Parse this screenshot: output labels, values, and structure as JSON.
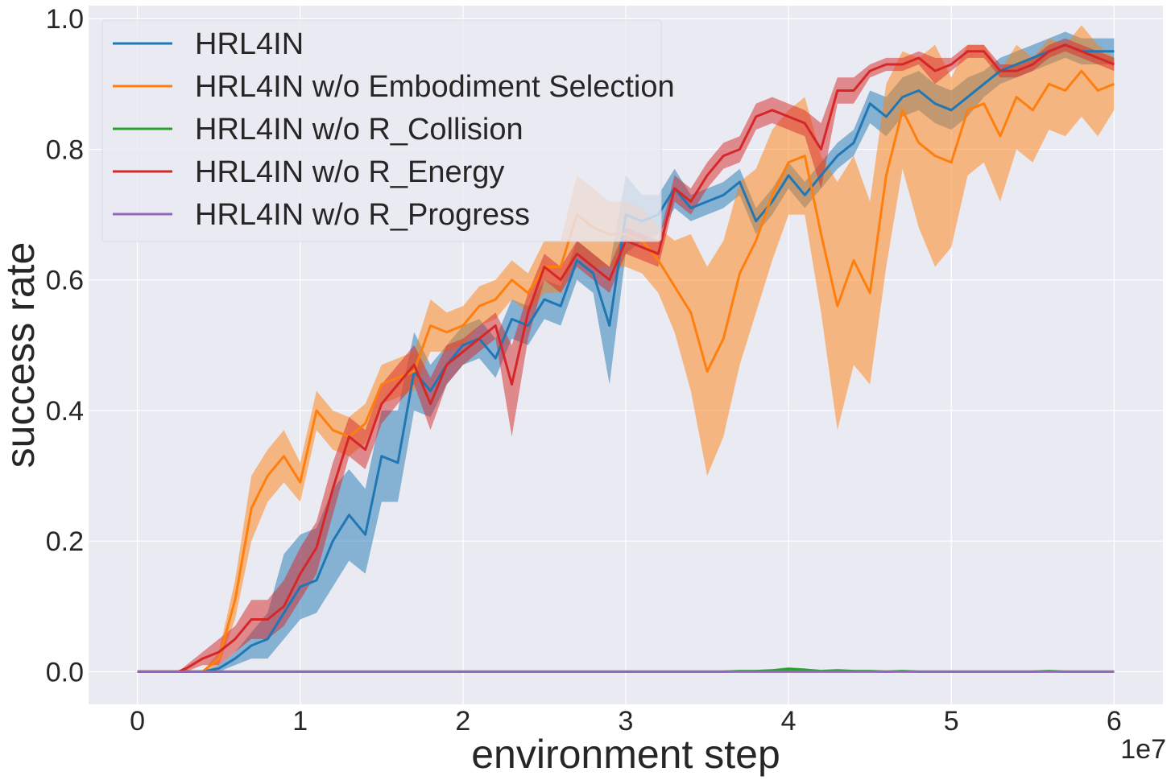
{
  "chart_data": {
    "type": "line",
    "title": "",
    "xlabel": "environment step",
    "ylabel": "success rate",
    "x_offset_label": "1e7",
    "xlim": [
      -0.3,
      6.3
    ],
    "ylim": [
      -0.05,
      1.02
    ],
    "xticks": [
      0,
      1,
      2,
      3,
      4,
      5,
      6
    ],
    "xtick_labels": [
      "0",
      "1",
      "2",
      "3",
      "4",
      "5",
      "6"
    ],
    "yticks": [
      0.0,
      0.2,
      0.4,
      0.6,
      0.8,
      1.0
    ],
    "ytick_labels": [
      "0.0",
      "0.2",
      "0.4",
      "0.6",
      "0.8",
      "1.0"
    ],
    "grid": true,
    "legend_position": "top-left",
    "x": [
      0,
      0.25,
      0.3,
      0.4,
      0.5,
      0.6,
      0.7,
      0.8,
      0.9,
      1.0,
      1.1,
      1.2,
      1.3,
      1.4,
      1.5,
      1.6,
      1.7,
      1.8,
      1.9,
      2.0,
      2.1,
      2.2,
      2.3,
      2.4,
      2.5,
      2.6,
      2.7,
      2.8,
      2.9,
      3.0,
      3.1,
      3.2,
      3.3,
      3.4,
      3.5,
      3.6,
      3.7,
      3.8,
      3.9,
      4.0,
      4.1,
      4.2,
      4.3,
      4.4,
      4.5,
      4.6,
      4.7,
      4.8,
      4.9,
      5.0,
      5.1,
      5.2,
      5.3,
      5.4,
      5.5,
      5.6,
      5.7,
      5.8,
      5.9,
      6.0
    ],
    "series": [
      {
        "name": "HRL4IN",
        "color": "#1f77b4",
        "values": [
          0,
          0,
          0,
          0,
          0.005,
          0.02,
          0.04,
          0.05,
          0.09,
          0.13,
          0.14,
          0.2,
          0.24,
          0.21,
          0.33,
          0.32,
          0.46,
          0.43,
          0.47,
          0.5,
          0.51,
          0.48,
          0.54,
          0.53,
          0.57,
          0.56,
          0.63,
          0.61,
          0.53,
          0.7,
          0.69,
          0.7,
          0.74,
          0.71,
          0.72,
          0.73,
          0.75,
          0.69,
          0.72,
          0.76,
          0.73,
          0.76,
          0.79,
          0.81,
          0.87,
          0.85,
          0.88,
          0.89,
          0.87,
          0.86,
          0.88,
          0.9,
          0.92,
          0.93,
          0.94,
          0.95,
          0.96,
          0.95,
          0.95,
          0.95
        ],
        "lower": [
          0,
          0,
          0,
          0,
          0,
          0.01,
          0.02,
          0.02,
          0.05,
          0.08,
          0.09,
          0.13,
          0.17,
          0.15,
          0.26,
          0.26,
          0.4,
          0.39,
          0.44,
          0.47,
          0.48,
          0.45,
          0.51,
          0.5,
          0.54,
          0.53,
          0.6,
          0.58,
          0.44,
          0.64,
          0.66,
          0.67,
          0.71,
          0.69,
          0.7,
          0.71,
          0.73,
          0.67,
          0.7,
          0.74,
          0.71,
          0.74,
          0.77,
          0.79,
          0.84,
          0.82,
          0.85,
          0.86,
          0.84,
          0.83,
          0.85,
          0.88,
          0.9,
          0.91,
          0.92,
          0.93,
          0.94,
          0.93,
          0.93,
          0.93
        ],
        "upper": [
          0,
          0,
          0,
          0,
          0.01,
          0.03,
          0.06,
          0.09,
          0.18,
          0.21,
          0.22,
          0.28,
          0.31,
          0.28,
          0.4,
          0.4,
          0.52,
          0.47,
          0.5,
          0.53,
          0.54,
          0.51,
          0.57,
          0.56,
          0.6,
          0.59,
          0.66,
          0.64,
          0.62,
          0.76,
          0.73,
          0.73,
          0.77,
          0.73,
          0.74,
          0.75,
          0.77,
          0.71,
          0.74,
          0.78,
          0.75,
          0.78,
          0.81,
          0.83,
          0.89,
          0.88,
          0.91,
          0.92,
          0.9,
          0.89,
          0.91,
          0.92,
          0.94,
          0.95,
          0.96,
          0.97,
          0.98,
          0.97,
          0.97,
          0.97
        ]
      },
      {
        "name": "HRL4IN w/o Embodiment Selection",
        "color": "#ff7f0e",
        "values": [
          0,
          0,
          0,
          0,
          0.02,
          0.11,
          0.25,
          0.3,
          0.33,
          0.29,
          0.4,
          0.37,
          0.36,
          0.38,
          0.44,
          0.45,
          0.46,
          0.53,
          0.52,
          0.53,
          0.56,
          0.57,
          0.6,
          0.58,
          0.62,
          0.62,
          0.7,
          0.68,
          0.67,
          0.67,
          0.66,
          0.63,
          0.59,
          0.55,
          0.46,
          0.51,
          0.61,
          0.66,
          0.73,
          0.78,
          0.79,
          0.67,
          0.56,
          0.63,
          0.58,
          0.76,
          0.86,
          0.81,
          0.79,
          0.78,
          0.86,
          0.87,
          0.82,
          0.88,
          0.86,
          0.9,
          0.89,
          0.92,
          0.89,
          0.9
        ],
        "lower": [
          0,
          0,
          0,
          0,
          0.01,
          0.08,
          0.2,
          0.26,
          0.29,
          0.26,
          0.37,
          0.34,
          0.33,
          0.35,
          0.41,
          0.42,
          0.43,
          0.49,
          0.49,
          0.5,
          0.53,
          0.54,
          0.57,
          0.55,
          0.58,
          0.58,
          0.64,
          0.62,
          0.62,
          0.62,
          0.61,
          0.58,
          0.52,
          0.43,
          0.3,
          0.36,
          0.47,
          0.55,
          0.63,
          0.7,
          0.7,
          0.55,
          0.37,
          0.47,
          0.44,
          0.62,
          0.77,
          0.68,
          0.62,
          0.65,
          0.76,
          0.78,
          0.72,
          0.8,
          0.78,
          0.83,
          0.82,
          0.85,
          0.82,
          0.86
        ],
        "upper": [
          0,
          0,
          0,
          0,
          0.03,
          0.14,
          0.3,
          0.34,
          0.37,
          0.32,
          0.43,
          0.4,
          0.39,
          0.41,
          0.47,
          0.48,
          0.49,
          0.57,
          0.55,
          0.56,
          0.59,
          0.6,
          0.63,
          0.61,
          0.66,
          0.66,
          0.76,
          0.74,
          0.72,
          0.72,
          0.71,
          0.68,
          0.66,
          0.67,
          0.62,
          0.66,
          0.75,
          0.77,
          0.83,
          0.86,
          0.88,
          0.79,
          0.75,
          0.79,
          0.72,
          0.9,
          0.95,
          0.94,
          0.96,
          0.91,
          0.96,
          0.96,
          0.92,
          0.96,
          0.94,
          0.97,
          0.96,
          0.99,
          0.96,
          0.94
        ]
      },
      {
        "name": "HRL4IN w/o R_Collision",
        "color": "#2ca02c",
        "values": [
          0,
          0,
          0,
          0,
          0,
          0,
          0,
          0,
          0,
          0,
          0,
          0,
          0,
          0,
          0,
          0,
          0,
          0,
          0,
          0,
          0,
          0,
          0,
          0,
          0,
          0,
          0,
          0,
          0,
          0,
          0,
          0,
          0,
          0,
          0,
          0,
          0.001,
          0.001,
          0.002,
          0.004,
          0.003,
          0.001,
          0.002,
          0.001,
          0.001,
          0,
          0.001,
          0,
          0,
          0,
          0,
          0,
          0,
          0,
          0,
          0.001,
          0,
          0,
          0,
          0
        ],
        "lower": [
          0,
          0,
          0,
          0,
          0,
          0,
          0,
          0,
          0,
          0,
          0,
          0,
          0,
          0,
          0,
          0,
          0,
          0,
          0,
          0,
          0,
          0,
          0,
          0,
          0,
          0,
          0,
          0,
          0,
          0,
          0,
          0,
          0,
          0,
          0,
          0,
          0,
          0,
          0,
          0.001,
          0.001,
          0,
          0,
          0,
          0,
          0,
          0,
          0,
          0,
          0,
          0,
          0,
          0,
          0,
          0,
          0,
          0,
          0,
          0,
          0
        ],
        "upper": [
          0,
          0,
          0,
          0,
          0,
          0,
          0,
          0,
          0,
          0,
          0,
          0,
          0,
          0,
          0,
          0,
          0,
          0,
          0,
          0,
          0,
          0,
          0,
          0,
          0,
          0,
          0,
          0,
          0,
          0,
          0,
          0,
          0,
          0,
          0,
          0,
          0.002,
          0.002,
          0.004,
          0.007,
          0.005,
          0.002,
          0.004,
          0.002,
          0.002,
          0.001,
          0.002,
          0.001,
          0.001,
          0.001,
          0.001,
          0.001,
          0.001,
          0.001,
          0.001,
          0.002,
          0.001,
          0.001,
          0.001,
          0.001
        ]
      },
      {
        "name": "HRL4IN w/o R_Energy",
        "color": "#d62728",
        "values": [
          0,
          0,
          0.005,
          0.02,
          0.03,
          0.05,
          0.08,
          0.08,
          0.1,
          0.15,
          0.19,
          0.28,
          0.36,
          0.34,
          0.41,
          0.44,
          0.47,
          0.41,
          0.47,
          0.49,
          0.51,
          0.53,
          0.44,
          0.55,
          0.62,
          0.6,
          0.64,
          0.62,
          0.6,
          0.66,
          0.65,
          0.64,
          0.74,
          0.72,
          0.76,
          0.79,
          0.8,
          0.85,
          0.86,
          0.85,
          0.84,
          0.8,
          0.89,
          0.89,
          0.92,
          0.93,
          0.93,
          0.94,
          0.92,
          0.93,
          0.95,
          0.95,
          0.92,
          0.92,
          0.93,
          0.95,
          0.96,
          0.95,
          0.94,
          0.93
        ],
        "lower": [
          0,
          0,
          0,
          0.01,
          0.01,
          0.03,
          0.05,
          0.05,
          0.07,
          0.11,
          0.15,
          0.24,
          0.33,
          0.31,
          0.38,
          0.41,
          0.44,
          0.37,
          0.44,
          0.47,
          0.49,
          0.51,
          0.36,
          0.51,
          0.6,
          0.58,
          0.62,
          0.6,
          0.58,
          0.64,
          0.63,
          0.62,
          0.72,
          0.7,
          0.74,
          0.77,
          0.78,
          0.83,
          0.84,
          0.83,
          0.82,
          0.74,
          0.87,
          0.87,
          0.91,
          0.92,
          0.92,
          0.93,
          0.9,
          0.92,
          0.94,
          0.94,
          0.91,
          0.91,
          0.92,
          0.94,
          0.95,
          0.94,
          0.93,
          0.92
        ],
        "upper": [
          0,
          0,
          0.01,
          0.03,
          0.05,
          0.07,
          0.11,
          0.11,
          0.14,
          0.19,
          0.23,
          0.32,
          0.39,
          0.37,
          0.44,
          0.47,
          0.5,
          0.45,
          0.5,
          0.51,
          0.53,
          0.55,
          0.5,
          0.58,
          0.64,
          0.62,
          0.66,
          0.64,
          0.62,
          0.68,
          0.67,
          0.66,
          0.76,
          0.74,
          0.78,
          0.81,
          0.82,
          0.87,
          0.88,
          0.87,
          0.86,
          0.84,
          0.91,
          0.91,
          0.93,
          0.94,
          0.94,
          0.95,
          0.94,
          0.94,
          0.96,
          0.96,
          0.93,
          0.93,
          0.94,
          0.96,
          0.97,
          0.96,
          0.95,
          0.94
        ]
      },
      {
        "name": "HRL4IN w/o R_Progress",
        "color": "#9467bd",
        "values": [
          0,
          0,
          0,
          0,
          0,
          0,
          0,
          0,
          0,
          0,
          0,
          0,
          0,
          0,
          0,
          0,
          0,
          0,
          0,
          0,
          0,
          0,
          0,
          0,
          0,
          0,
          0,
          0,
          0,
          0,
          0,
          0,
          0,
          0,
          0,
          0,
          0,
          0,
          0,
          0,
          0,
          0,
          0,
          0,
          0,
          0,
          0,
          0,
          0,
          0,
          0,
          0,
          0,
          0,
          0,
          0,
          0,
          0,
          0,
          0
        ],
        "lower": null,
        "upper": null
      }
    ]
  }
}
